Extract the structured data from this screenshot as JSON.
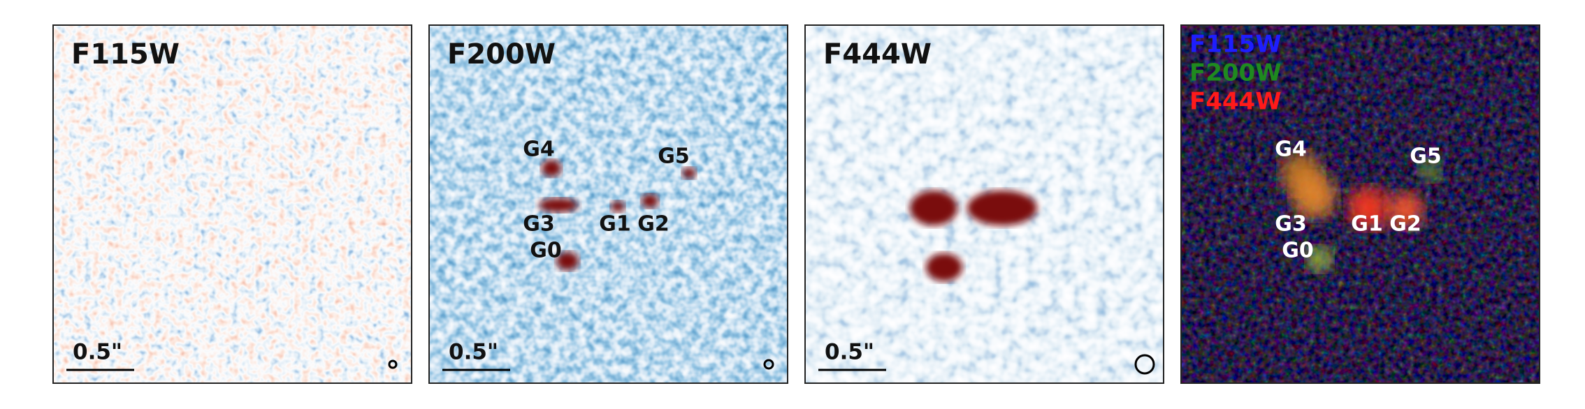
{
  "panels": [
    {
      "label": "F115W",
      "scale_bar": "0.5\""
    },
    {
      "label": "F200W",
      "scale_bar": "0.5\"",
      "sources": [
        "G4",
        "G5",
        "G3",
        "G1",
        "G2",
        "G0"
      ]
    },
    {
      "label": "F444W",
      "scale_bar": "0.5\""
    },
    {
      "legend": [
        {
          "label": "F115W",
          "color": "#1e1eff"
        },
        {
          "label": "F200W",
          "color": "#1f8a1f"
        },
        {
          "label": "F444W",
          "color": "#ff1a1a"
        }
      ],
      "sources": [
        "G4",
        "G5",
        "G3",
        "G1",
        "G2",
        "G0"
      ]
    }
  ]
}
